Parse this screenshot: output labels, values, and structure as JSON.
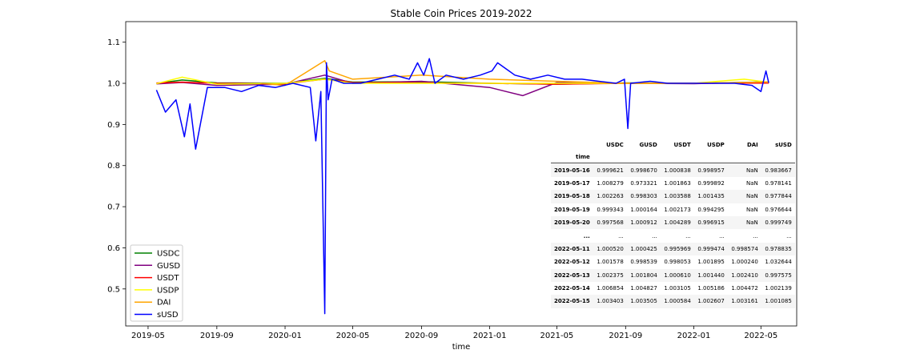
{
  "chart_data": {
    "type": "line",
    "title": "Stable Coin Prices 2019-2022",
    "xlabel": "time",
    "ylabel": "",
    "x_range": [
      "2019-03-22",
      "2022-07-04"
    ],
    "ylim": [
      0.41,
      1.15
    ],
    "x_ticks": [
      {
        "date": "2019-05-01",
        "label": "2019-05"
      },
      {
        "date": "2019-09-01",
        "label": "2019-09"
      },
      {
        "date": "2020-01-01",
        "label": "2020-01"
      },
      {
        "date": "2020-05-01",
        "label": "2020-05"
      },
      {
        "date": "2020-09-01",
        "label": "2020-09"
      },
      {
        "date": "2021-01-01",
        "label": "2021-01"
      },
      {
        "date": "2021-05-01",
        "label": "2021-05"
      },
      {
        "date": "2021-09-01",
        "label": "2021-09"
      },
      {
        "date": "2022-01-01",
        "label": "2022-01"
      },
      {
        "date": "2022-05-01",
        "label": "2022-05"
      }
    ],
    "y_ticks": [
      {
        "value": 0.5,
        "label": "0.5"
      },
      {
        "value": 0.6,
        "label": "0.6"
      },
      {
        "value": 0.7,
        "label": "0.7"
      },
      {
        "value": 0.8,
        "label": "0.8"
      },
      {
        "value": 0.9,
        "label": "0.9"
      },
      {
        "value": 1.0,
        "label": "1.0"
      },
      {
        "value": 1.1,
        "label": "1.1"
      }
    ],
    "grid": false,
    "legend_position": "lower-left",
    "series": [
      {
        "name": "USDC",
        "color": "#008000",
        "x": [
          "2019-05-16",
          "2019-07-01",
          "2019-09-01",
          "2020-01-01",
          "2020-03-12",
          "2020-05-01",
          "2020-09-01",
          "2021-01-01",
          "2021-05-01",
          "2021-09-01",
          "2022-01-01",
          "2022-05-15"
        ],
        "y": [
          0.9996,
          1.008,
          1.001,
          1.0,
          1.012,
          1.003,
          1.004,
          1.0,
          0.998,
          1.001,
          1.0,
          1.0034
        ]
      },
      {
        "name": "GUSD",
        "color": "#800080",
        "x": [
          "2019-05-16",
          "2019-07-01",
          "2019-09-01",
          "2020-01-01",
          "2020-03-12",
          "2020-05-01",
          "2020-09-01",
          "2021-01-01",
          "2021-03-01",
          "2021-05-01",
          "2021-09-01",
          "2022-01-01",
          "2022-05-15"
        ],
        "y": [
          0.9987,
          1.002,
          0.995,
          0.998,
          1.02,
          1.0,
          1.005,
          0.99,
          0.97,
          1.002,
          1.0,
          0.999,
          1.0035
        ]
      },
      {
        "name": "USDT",
        "color": "#ff0000",
        "x": [
          "2019-05-16",
          "2019-07-01",
          "2019-09-01",
          "2020-01-01",
          "2020-03-12",
          "2020-05-01",
          "2020-09-01",
          "2021-01-01",
          "2021-05-01",
          "2021-09-01",
          "2022-01-01",
          "2022-05-15"
        ],
        "y": [
          1.0008,
          1.003,
          1.0,
          0.999,
          1.01,
          1.002,
          1.001,
          1.0,
          0.998,
          1.0,
          1.0,
          1.0006
        ]
      },
      {
        "name": "USDP",
        "color": "#ffff00",
        "x": [
          "2019-05-16",
          "2019-07-01",
          "2019-09-01",
          "2020-01-01",
          "2020-03-12",
          "2020-05-01",
          "2020-09-01",
          "2021-01-01",
          "2021-05-01",
          "2021-09-01",
          "2022-01-01",
          "2022-04-01",
          "2022-05-15"
        ],
        "y": [
          0.999,
          1.015,
          0.998,
          1.0,
          1.01,
          1.0,
          1.0,
          1.0,
          1.0,
          1.0,
          1.0,
          1.01,
          1.0026
        ]
      },
      {
        "name": "DAI",
        "color": "#ffa500",
        "x": [
          "2019-11-18",
          "2020-01-01",
          "2020-03-12",
          "2020-03-20",
          "2020-05-01",
          "2020-09-01",
          "2021-01-01",
          "2021-05-01",
          "2021-09-01",
          "2022-01-01",
          "2022-05-15"
        ],
        "y": [
          1.0,
          0.995,
          1.055,
          1.03,
          1.01,
          1.02,
          1.01,
          1.005,
          1.0,
          1.0,
          1.0032
        ]
      },
      {
        "name": "sUSD",
        "color": "#0000ff",
        "x": [
          "2019-05-16",
          "2019-06-01",
          "2019-06-20",
          "2019-07-05",
          "2019-07-15",
          "2019-07-25",
          "2019-08-15",
          "2019-09-15",
          "2019-10-15",
          "2019-11-15",
          "2019-12-15",
          "2020-01-15",
          "2020-02-15",
          "2020-02-25",
          "2020-03-05",
          "2020-03-12",
          "2020-03-15",
          "2020-03-18",
          "2020-03-25",
          "2020-04-15",
          "2020-05-15",
          "2020-06-15",
          "2020-07-15",
          "2020-08-10",
          "2020-08-25",
          "2020-09-05",
          "2020-09-15",
          "2020-09-25",
          "2020-10-15",
          "2020-11-15",
          "2020-12-15",
          "2021-01-05",
          "2021-01-15",
          "2021-02-15",
          "2021-03-15",
          "2021-04-15",
          "2021-05-15",
          "2021-06-15",
          "2021-07-15",
          "2021-08-15",
          "2021-08-30",
          "2021-09-05",
          "2021-09-10",
          "2021-10-15",
          "2021-11-15",
          "2021-12-15",
          "2022-01-15",
          "2022-02-15",
          "2022-03-15",
          "2022-04-15",
          "2022-05-01",
          "2022-05-10",
          "2022-05-15"
        ],
        "y": [
          0.9837,
          0.93,
          0.96,
          0.87,
          0.95,
          0.84,
          0.99,
          0.99,
          0.98,
          0.995,
          0.99,
          1.0,
          0.99,
          0.86,
          0.98,
          0.44,
          1.05,
          0.96,
          1.01,
          1.0,
          1.0,
          1.01,
          1.02,
          1.01,
          1.05,
          1.02,
          1.06,
          1.0,
          1.02,
          1.01,
          1.02,
          1.03,
          1.05,
          1.02,
          1.01,
          1.02,
          1.01,
          1.01,
          1.005,
          1.0,
          1.01,
          0.89,
          1.0,
          1.005,
          1.0,
          1.0,
          1.0,
          1.0,
          1.0,
          0.995,
          0.98,
          1.03,
          1.0011
        ]
      }
    ],
    "annotations": []
  },
  "table": {
    "columns": [
      "USDC",
      "GUSD",
      "USDT",
      "USDP",
      "DAI",
      "sUSD"
    ],
    "index_name": "time",
    "rows": [
      {
        "index": "2019-05-16",
        "values": [
          "0.999621",
          "0.998670",
          "1.000838",
          "0.998957",
          "NaN",
          "0.983667"
        ]
      },
      {
        "index": "2019-05-17",
        "values": [
          "1.008279",
          "0.973321",
          "1.001863",
          "0.999892",
          "NaN",
          "0.978141"
        ]
      },
      {
        "index": "2019-05-18",
        "values": [
          "1.002263",
          "0.998303",
          "1.003588",
          "1.001435",
          "NaN",
          "0.977844"
        ]
      },
      {
        "index": "2019-05-19",
        "values": [
          "0.999343",
          "1.000164",
          "1.002173",
          "0.994295",
          "NaN",
          "0.976644"
        ]
      },
      {
        "index": "2019-05-20",
        "values": [
          "0.997568",
          "1.000912",
          "1.004289",
          "0.996915",
          "NaN",
          "0.999749"
        ]
      },
      {
        "index": "...",
        "values": [
          "...",
          "...",
          "...",
          "...",
          "...",
          "..."
        ]
      },
      {
        "index": "2022-05-11",
        "values": [
          "1.000520",
          "1.000425",
          "0.995969",
          "0.999474",
          "0.998574",
          "0.978835"
        ]
      },
      {
        "index": "2022-05-12",
        "values": [
          "1.001578",
          "0.998539",
          "0.998053",
          "1.001895",
          "1.000240",
          "1.032644"
        ]
      },
      {
        "index": "2022-05-13",
        "values": [
          "1.002375",
          "1.001804",
          "1.000610",
          "1.001440",
          "1.002410",
          "0.997575"
        ]
      },
      {
        "index": "2022-05-14",
        "values": [
          "1.006854",
          "1.004827",
          "1.003105",
          "1.005186",
          "1.004472",
          "1.002139"
        ]
      },
      {
        "index": "2022-05-15",
        "values": [
          "1.003403",
          "1.003505",
          "1.000584",
          "1.002607",
          "1.003161",
          "1.001085"
        ]
      }
    ]
  }
}
